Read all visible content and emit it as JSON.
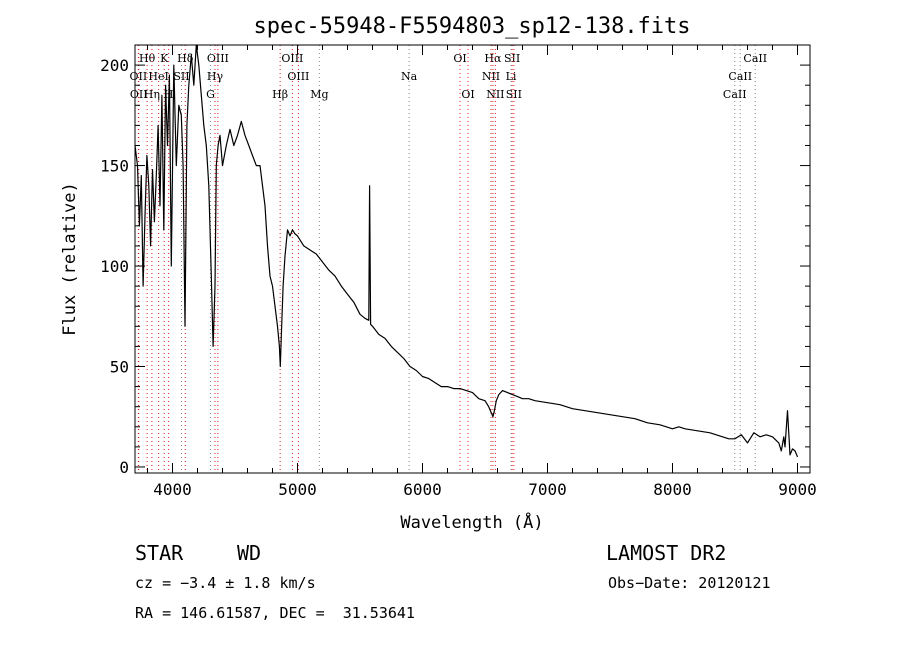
{
  "chart_data": {
    "type": "line",
    "title": "spec-55948-F5594803_sp12-138.fits",
    "xlabel": "Wavelength (Å)",
    "ylabel": "Flux (relative)",
    "xlim": [
      3700,
      9100
    ],
    "ylim": [
      -3,
      210
    ],
    "xticks": [
      4000,
      5000,
      6000,
      7000,
      8000,
      9000
    ],
    "yticks": [
      0,
      50,
      100,
      150,
      200
    ],
    "grid": false,
    "series": [
      {
        "x": [
          3700,
          3720,
          3735,
          3750,
          3765,
          3780,
          3795,
          3810,
          3825,
          3840,
          3855,
          3870,
          3885,
          3900,
          3915,
          3930,
          3945,
          3960,
          3975,
          3990,
          4010,
          4030,
          4050,
          4070,
          4085,
          4100,
          4115,
          4130,
          4150,
          4170,
          4190,
          4210,
          4230,
          4250,
          4270,
          4290,
          4310,
          4325,
          4340,
          4350,
          4365,
          4380,
          4400,
          4430,
          4460,
          4490,
          4520,
          4550,
          4580,
          4610,
          4640,
          4670,
          4700,
          4720,
          4740,
          4760,
          4780,
          4800,
          4820,
          4840,
          4855,
          4862,
          4870,
          4885,
          4900,
          4920,
          4940,
          4960,
          4980,
          5000,
          5050,
          5100,
          5150,
          5200,
          5250,
          5300,
          5350,
          5400,
          5450,
          5500,
          5540,
          5570,
          5577,
          5585,
          5600,
          5650,
          5700,
          5750,
          5800,
          5850,
          5900,
          5950,
          6000,
          6050,
          6100,
          6150,
          6200,
          6250,
          6300,
          6350,
          6400,
          6450,
          6500,
          6530,
          6550,
          6563,
          6575,
          6590,
          6610,
          6640,
          6680,
          6720,
          6760,
          6800,
          6850,
          6900,
          7000,
          7100,
          7200,
          7300,
          7400,
          7500,
          7600,
          7700,
          7800,
          7900,
          7950,
          8000,
          8050,
          8100,
          8200,
          8300,
          8350,
          8400,
          8450,
          8500,
          8550,
          8600,
          8650,
          8700,
          8750,
          8800,
          8850,
          8870,
          8890,
          8900,
          8920,
          8940,
          8960,
          8980,
          9000
        ],
        "y": [
          160,
          150,
          120,
          145,
          90,
          125,
          155,
          140,
          110,
          148,
          122,
          145,
          170,
          130,
          185,
          118,
          190,
          160,
          195,
          100,
          200,
          150,
          180,
          175,
          150,
          70,
          170,
          190,
          205,
          190,
          210,
          200,
          185,
          170,
          160,
          140,
          95,
          60,
          90,
          150,
          160,
          165,
          150,
          160,
          168,
          160,
          165,
          172,
          165,
          160,
          155,
          150,
          150,
          140,
          130,
          110,
          95,
          90,
          80,
          70,
          60,
          50,
          65,
          90,
          105,
          118,
          115,
          118,
          116,
          115,
          110,
          108,
          106,
          102,
          98,
          95,
          90,
          86,
          82,
          76,
          74,
          73,
          140,
          71,
          70,
          66,
          64,
          60,
          57,
          54,
          50,
          48,
          45,
          44,
          42,
          40,
          40,
          39,
          39,
          38,
          37,
          34,
          33,
          30,
          27,
          25,
          28,
          33,
          36,
          38,
          37,
          36,
          35,
          34,
          34,
          33,
          32,
          31,
          29,
          28,
          27,
          26,
          25,
          24,
          22,
          21,
          20,
          19,
          20,
          19,
          18,
          17,
          16,
          15,
          14,
          14,
          16,
          12,
          17,
          15,
          16,
          15,
          12,
          8,
          15,
          10,
          28,
          6,
          9,
          8,
          5
        ]
      }
    ],
    "line_markers": [
      {
        "name": "Hθ",
        "x": 3797,
        "row": 0,
        "color": "#e02020"
      },
      {
        "name": "K",
        "x": 3934,
        "row": 0,
        "color": "#e02020"
      },
      {
        "name": "Hδ",
        "x": 4102,
        "row": 0,
        "color": "#e02020"
      },
      {
        "name": "OIII",
        "x": 4363,
        "row": 0,
        "color": "#e02020"
      },
      {
        "name": "OIII",
        "x": 4959,
        "row": 0,
        "color": "#e02020"
      },
      {
        "name": "OI",
        "x": 6300,
        "row": 0,
        "color": "#e02020"
      },
      {
        "name": "Hα",
        "x": 6563,
        "row": 0,
        "color": "#e02020"
      },
      {
        "name": "SII",
        "x": 6717,
        "row": 0,
        "color": "#e02020"
      },
      {
        "name": "CaII",
        "x": 8662,
        "row": 0,
        "color": "#888888"
      },
      {
        "name": "OII",
        "x": 3727,
        "row": 1,
        "color": "#e02020"
      },
      {
        "name": "HeI",
        "x": 3889,
        "row": 1,
        "color": "#e02020"
      },
      {
        "name": "SII",
        "x": 4072,
        "row": 1,
        "color": "#888888"
      },
      {
        "name": "Hγ",
        "x": 4340,
        "row": 1,
        "color": "#e02020"
      },
      {
        "name": "OIII",
        "x": 5007,
        "row": 1,
        "color": "#e02020"
      },
      {
        "name": "Na",
        "x": 5893,
        "row": 1,
        "color": "#888888"
      },
      {
        "name": "NII",
        "x": 6548,
        "row": 1,
        "color": "#e02020"
      },
      {
        "name": "Li",
        "x": 6708,
        "row": 1,
        "color": "#888888"
      },
      {
        "name": "CaII",
        "x": 8542,
        "row": 1,
        "color": "#888888"
      },
      {
        "name": "OII",
        "x": 3730,
        "row": 2,
        "color": "#e02020"
      },
      {
        "name": "Hη",
        "x": 3835,
        "row": 2,
        "color": "#e02020"
      },
      {
        "name": "H",
        "x": 3969,
        "row": 2,
        "color": "#e02020"
      },
      {
        "name": "G",
        "x": 4304,
        "row": 2,
        "color": "#888888"
      },
      {
        "name": "Hβ",
        "x": 4861,
        "row": 2,
        "color": "#e02020"
      },
      {
        "name": "Mg",
        "x": 5175,
        "row": 2,
        "color": "#888888"
      },
      {
        "name": "OI",
        "x": 6364,
        "row": 2,
        "color": "#e02020"
      },
      {
        "name": "NII",
        "x": 6583,
        "row": 2,
        "color": "#e02020"
      },
      {
        "name": "SII",
        "x": 6731,
        "row": 2,
        "color": "#e02020"
      },
      {
        "name": "CaII",
        "x": 8498,
        "row": 2,
        "color": "#888888"
      }
    ]
  },
  "info": {
    "class_label": "STAR",
    "subclass": "WD",
    "survey": "LAMOST DR2",
    "cz": "cz = −3.4 ± 1.8 km/s",
    "obs_date": "Obs−Date: 20120121",
    "coords": "RA = 146.61587, DEC =  31.53641"
  }
}
